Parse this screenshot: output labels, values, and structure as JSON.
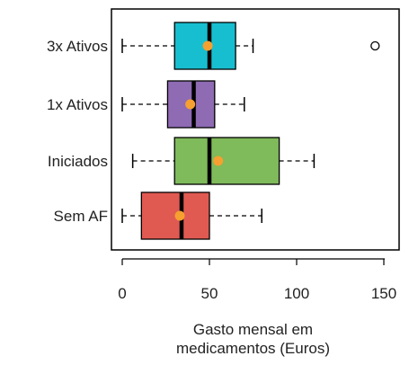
{
  "chart_data": {
    "type": "boxplot",
    "orientation": "horizontal",
    "title": "",
    "xlabel": "Gasto mensal em\nmedicamentos (Euros)",
    "ylabel": "",
    "xlim": [
      0,
      150
    ],
    "xticks": [
      0,
      50,
      100,
      150
    ],
    "grid": false,
    "legend": "none",
    "categories": [
      "3x Ativos",
      "1x Ativos",
      "Iniciados",
      "Sem AF"
    ],
    "series": [
      {
        "category": "3x Ativos",
        "whisker_low": 0,
        "q1": 30,
        "median": 50,
        "q3": 65,
        "whisker_high": 75,
        "mean": 49,
        "outliers": [
          145
        ],
        "color": "#17becf"
      },
      {
        "category": "1x Ativos",
        "whisker_low": 0,
        "q1": 26,
        "median": 41,
        "q3": 53,
        "whisker_high": 70,
        "mean": 39,
        "outliers": [],
        "color": "#8e6bb3"
      },
      {
        "category": "Iniciados",
        "whisker_low": 6,
        "q1": 30,
        "median": 50,
        "q3": 90,
        "whisker_high": 110,
        "mean": 55,
        "outliers": [],
        "color": "#7fba5b"
      },
      {
        "category": "Sem AF",
        "whisker_low": 0,
        "q1": 11,
        "median": 34,
        "q3": 50,
        "whisker_high": 80,
        "mean": 33,
        "outliers": [],
        "color": "#e05a52"
      }
    ],
    "mean_marker_color": "#f5a030"
  }
}
